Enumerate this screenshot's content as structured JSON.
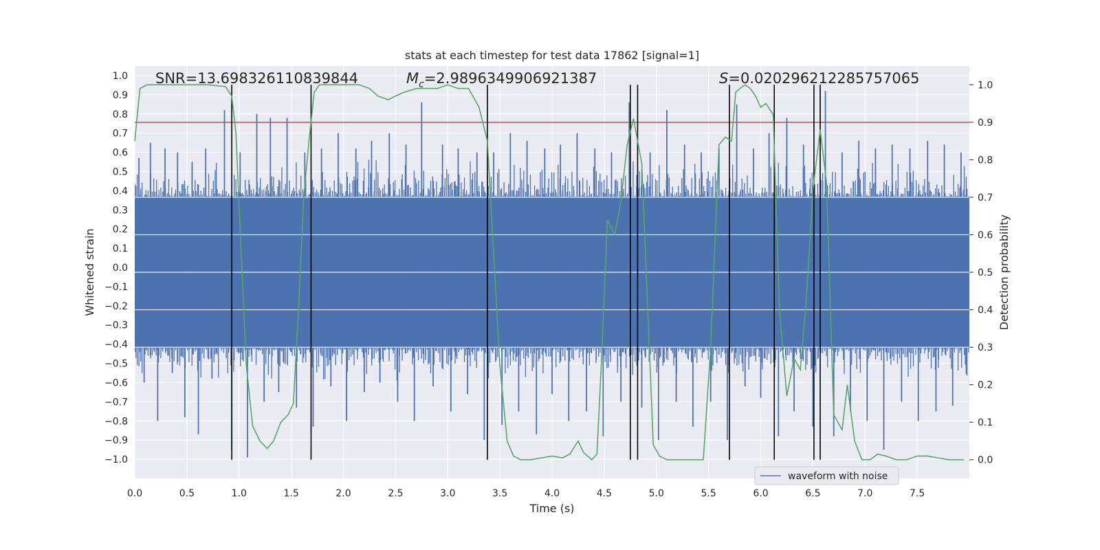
{
  "chart_data": {
    "type": "line",
    "title": "stats at each timestep for test data 17862 [signal=1]",
    "xlabel": "Time (s)",
    "ylabel": "Whitened strain",
    "y2label": "Detection probability",
    "xlim": [
      0.0,
      8.0
    ],
    "ylim": [
      -1.1,
      1.05
    ],
    "y2lim": [
      -0.05,
      1.05
    ],
    "xticks": [
      "0.0",
      "0.5",
      "1.0",
      "1.5",
      "2.0",
      "2.5",
      "3.0",
      "3.5",
      "4.0",
      "4.5",
      "5.0",
      "5.5",
      "6.0",
      "6.5",
      "7.0",
      "7.5"
    ],
    "yticks": [
      "1.0",
      "0.9",
      "0.8",
      "0.7",
      "0.6",
      "0.5",
      "0.4",
      "0.3",
      "0.2",
      "0.1",
      "0.0",
      "−0.1",
      "−0.2",
      "−0.3",
      "−0.4",
      "−0.5",
      "−0.6",
      "−0.7",
      "−0.8",
      "−0.9",
      "−1.0"
    ],
    "y2ticks": [
      "1.0",
      "0.9",
      "0.8",
      "0.7",
      "0.6",
      "0.5",
      "0.4",
      "0.3",
      "0.2",
      "0.1",
      "0.0"
    ],
    "annotations": {
      "snr": "SNR=13.698326110839844",
      "mc_prefix": "M",
      "mc_sub": "c",
      "mc_value": "=2.9896349906921387",
      "s_prefix": "S",
      "s_value": "=0.020296212285757065"
    },
    "threshold": 0.9,
    "threshold_color": "#c44e52",
    "strain_color": "#4c72b0",
    "prob_color": "#55a868",
    "series": [
      {
        "name": "waveform with noise",
        "kind": "noise envelope",
        "core_band": [
          -0.42,
          0.37
        ],
        "spike_times": [
          0.04,
          0.09,
          0.15,
          0.22,
          0.29,
          0.36,
          0.41,
          0.48,
          0.55,
          0.61,
          0.68,
          0.74,
          0.86,
          0.93,
          1.01,
          1.08,
          1.17,
          1.24,
          1.3,
          1.38,
          1.46,
          1.55,
          1.63,
          1.71,
          1.79,
          1.88,
          1.95,
          2.03,
          2.12,
          2.2,
          2.27,
          2.35,
          2.44,
          2.52,
          2.6,
          2.68,
          2.75,
          2.86,
          2.95,
          3.03,
          3.1,
          3.19,
          3.28,
          3.35,
          3.44,
          3.52,
          3.6,
          3.68,
          3.76,
          3.85,
          3.93,
          4.0,
          4.08,
          4.16,
          4.24,
          4.33,
          4.41,
          4.49,
          4.57,
          4.66,
          4.74,
          4.86,
          4.94,
          5.02,
          5.1,
          5.19,
          5.27,
          5.35,
          5.43,
          5.52,
          5.6,
          5.68,
          5.77,
          5.85,
          5.93,
          6.0,
          6.08,
          6.17,
          6.25,
          6.32,
          6.41,
          6.5,
          6.62,
          6.7,
          6.78,
          6.86,
          6.94,
          7.02,
          7.1,
          7.18,
          7.26,
          7.35,
          7.43,
          7.51,
          7.6,
          7.68,
          7.76,
          7.84,
          7.92
        ],
        "spike_values": [
          0.57,
          -0.6,
          0.65,
          -0.8,
          0.62,
          -0.55,
          0.6,
          -0.78,
          0.55,
          -0.87,
          0.62,
          -0.58,
          0.82,
          -0.95,
          0.6,
          -0.99,
          0.8,
          -0.7,
          0.78,
          -0.65,
          0.78,
          -0.73,
          0.6,
          -0.83,
          0.62,
          -0.62,
          0.7,
          -0.8,
          0.62,
          -0.65,
          0.66,
          -0.6,
          0.7,
          -0.7,
          0.64,
          -0.8,
          0.86,
          -0.62,
          0.64,
          -0.75,
          0.62,
          -0.66,
          0.6,
          -0.9,
          0.6,
          -0.82,
          0.7,
          -0.75,
          0.66,
          -0.87,
          0.62,
          -0.66,
          0.64,
          -0.8,
          0.7,
          -0.75,
          0.62,
          -0.88,
          0.6,
          -0.7,
          0.86,
          -0.73,
          0.6,
          -0.9,
          0.82,
          -0.7,
          0.64,
          -0.83,
          0.6,
          -0.7,
          0.62,
          -0.9,
          0.85,
          -0.62,
          0.62,
          -0.68,
          0.7,
          -0.88,
          0.78,
          -0.75,
          0.64,
          -0.83,
          0.92,
          -0.88,
          0.6,
          -0.75,
          0.66,
          -0.8,
          0.62,
          -0.95,
          0.64,
          -0.7,
          0.62,
          -0.8,
          0.66,
          -0.75,
          0.64,
          -0.72,
          0.6
        ]
      },
      {
        "name": "detection probability",
        "x": [
          0.0,
          0.05,
          0.12,
          0.2,
          0.3,
          0.5,
          0.7,
          0.87,
          0.93,
          0.97,
          1.02,
          1.07,
          1.13,
          1.2,
          1.27,
          1.33,
          1.4,
          1.47,
          1.52,
          1.57,
          1.62,
          1.67,
          1.72,
          1.77,
          1.85,
          2.0,
          2.15,
          2.25,
          2.33,
          2.43,
          2.5,
          2.58,
          2.7,
          2.8,
          2.9,
          3.0,
          3.1,
          3.2,
          3.3,
          3.38,
          3.43,
          3.5,
          3.57,
          3.63,
          3.7,
          3.8,
          3.9,
          4.0,
          4.1,
          4.17,
          4.25,
          4.3,
          4.38,
          4.43,
          4.48,
          4.53,
          4.6,
          4.66,
          4.72,
          4.78,
          4.82,
          4.86,
          4.9,
          4.97,
          5.03,
          5.1,
          5.2,
          5.3,
          5.4,
          5.45,
          5.52,
          5.6,
          5.66,
          5.72,
          5.76,
          5.8,
          5.85,
          5.9,
          5.95,
          6.0,
          6.05,
          6.12,
          6.18,
          6.25,
          6.32,
          6.38,
          6.44,
          6.5,
          6.57,
          6.63,
          6.7,
          6.78,
          6.83,
          6.9,
          6.97,
          7.05,
          7.12,
          7.2,
          7.3,
          7.4,
          7.5,
          7.6,
          7.7,
          7.8,
          7.95
        ],
        "values": [
          0.85,
          0.99,
          1.0,
          1.0,
          1.0,
          1.0,
          1.0,
          0.995,
          0.97,
          0.87,
          0.55,
          0.25,
          0.09,
          0.05,
          0.03,
          0.05,
          0.1,
          0.12,
          0.15,
          0.4,
          0.7,
          0.85,
          0.98,
          1.0,
          1.0,
          1.0,
          1.0,
          0.99,
          0.97,
          0.96,
          0.97,
          0.98,
          0.99,
          0.99,
          0.99,
          1.0,
          0.99,
          0.99,
          0.94,
          0.85,
          0.6,
          0.25,
          0.05,
          0.01,
          0.0,
          0.0,
          0.005,
          0.01,
          0.005,
          0.015,
          0.05,
          0.02,
          0.0,
          0.015,
          0.3,
          0.64,
          0.6,
          0.69,
          0.84,
          0.91,
          0.85,
          0.79,
          0.52,
          0.04,
          0.01,
          0.0,
          0.0,
          0.0,
          0.0,
          0.0,
          0.3,
          0.84,
          0.86,
          0.85,
          0.98,
          0.99,
          1.0,
          0.99,
          0.97,
          0.94,
          0.95,
          0.92,
          0.4,
          0.17,
          0.27,
          0.24,
          0.44,
          0.72,
          0.88,
          0.74,
          0.12,
          0.08,
          0.2,
          0.05,
          0.0,
          0.0,
          0.015,
          0.01,
          0.0,
          0.0,
          0.01,
          0.01,
          0.005,
          0.0,
          0.0
        ]
      }
    ],
    "vlines": [
      0.93,
      1.69,
      3.38,
      4.75,
      4.82,
      5.7,
      6.13,
      6.51,
      6.57
    ],
    "legend": {
      "label": "waveform with noise",
      "placement": "lower-right"
    }
  }
}
